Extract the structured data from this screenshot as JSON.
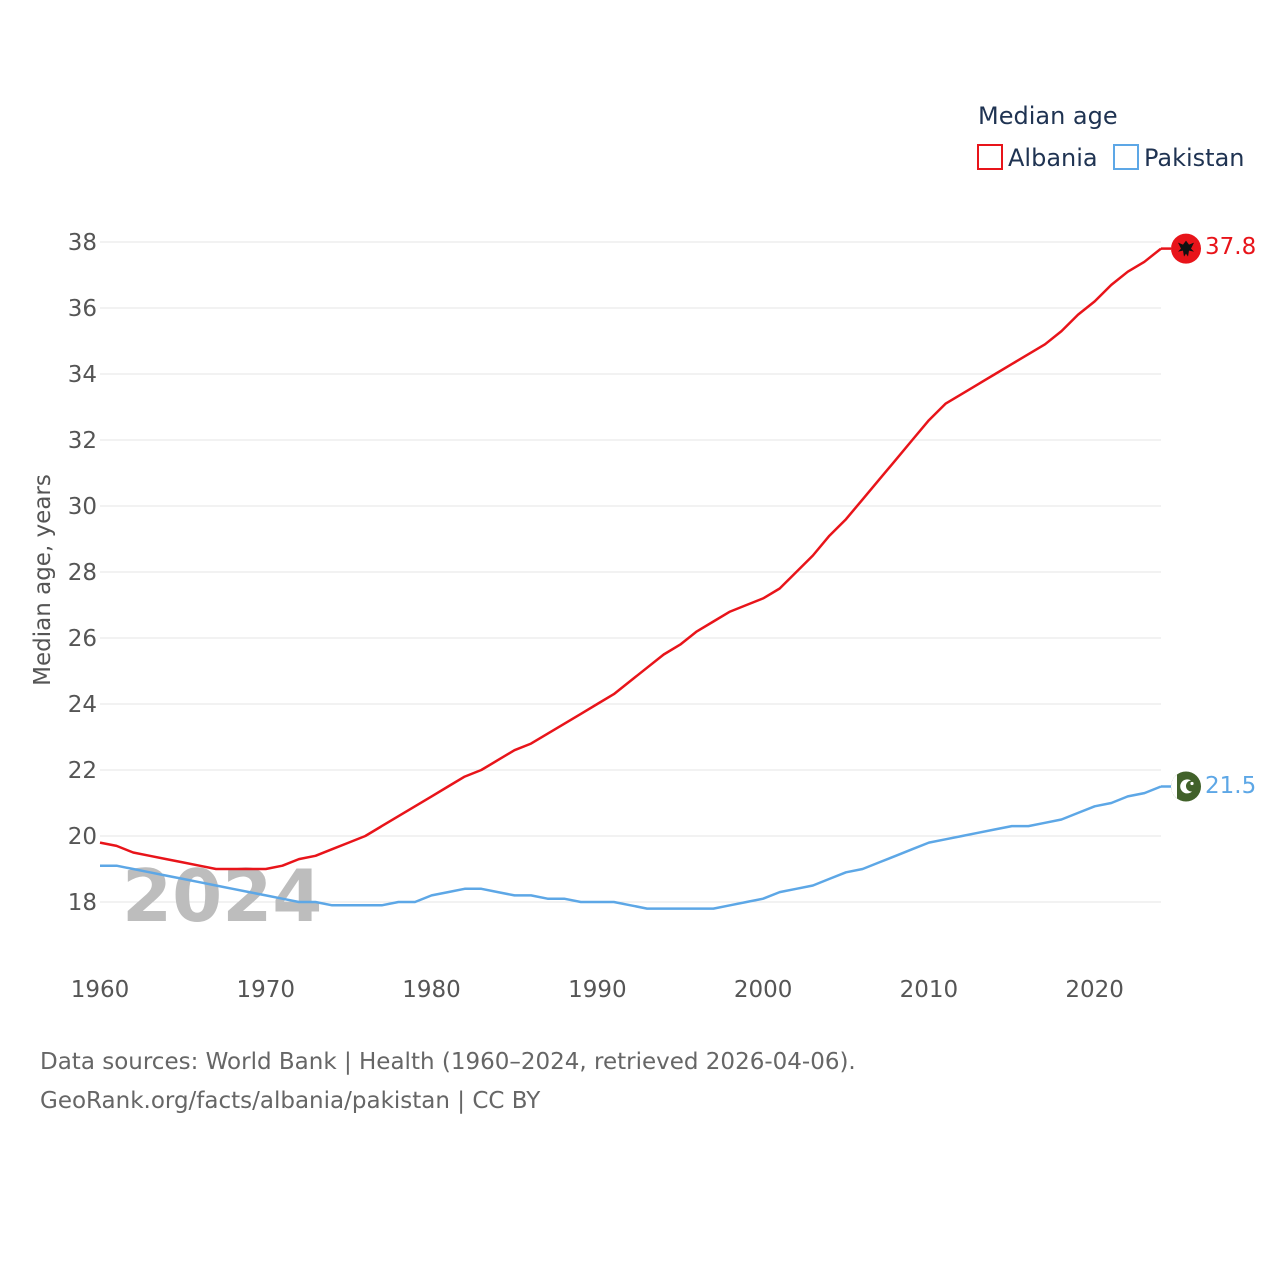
{
  "chart_data": {
    "type": "line",
    "title": "Median age",
    "ylabel": "Median age, years",
    "xlabel": "",
    "xlim": [
      1960,
      2024
    ],
    "ylim": [
      16.5,
      38.5
    ],
    "x_ticks": [
      1960,
      1970,
      1980,
      1990,
      2000,
      2010,
      2020
    ],
    "y_ticks": [
      18,
      20,
      22,
      24,
      26,
      28,
      30,
      32,
      34,
      36,
      38
    ],
    "current_year": "2024",
    "legend": [
      "Albania",
      "Pakistan"
    ],
    "x": [
      1960,
      1961,
      1962,
      1963,
      1964,
      1965,
      1966,
      1967,
      1968,
      1969,
      1970,
      1971,
      1972,
      1973,
      1974,
      1975,
      1976,
      1977,
      1978,
      1979,
      1980,
      1981,
      1982,
      1983,
      1984,
      1985,
      1986,
      1987,
      1988,
      1989,
      1990,
      1991,
      1992,
      1993,
      1994,
      1995,
      1996,
      1997,
      1998,
      1999,
      2000,
      2001,
      2002,
      2003,
      2004,
      2005,
      2006,
      2007,
      2008,
      2009,
      2010,
      2011,
      2012,
      2013,
      2014,
      2015,
      2016,
      2017,
      2018,
      2019,
      2020,
      2021,
      2022,
      2023,
      2024
    ],
    "series": [
      {
        "name": "Albania",
        "color": "#e8141a",
        "end_label": "37.8",
        "values": [
          19.8,
          19.7,
          19.5,
          19.4,
          19.3,
          19.2,
          19.1,
          19.0,
          19.0,
          19.0,
          19.0,
          19.1,
          19.3,
          19.4,
          19.6,
          19.8,
          20.0,
          20.3,
          20.6,
          20.9,
          21.2,
          21.5,
          21.8,
          22.0,
          22.3,
          22.6,
          22.8,
          23.1,
          23.4,
          23.7,
          24.0,
          24.3,
          24.7,
          25.1,
          25.5,
          25.8,
          26.2,
          26.5,
          26.8,
          27.0,
          27.2,
          27.5,
          28.0,
          28.5,
          29.1,
          29.6,
          30.2,
          30.8,
          31.4,
          32.0,
          32.6,
          33.1,
          33.4,
          33.7,
          34.0,
          34.3,
          34.6,
          34.9,
          35.3,
          35.8,
          36.2,
          36.7,
          37.1,
          37.4,
          37.8
        ]
      },
      {
        "name": "Pakistan",
        "color": "#5da7e6",
        "end_label": "21.5",
        "values": [
          19.1,
          19.1,
          19.0,
          18.9,
          18.8,
          18.7,
          18.6,
          18.5,
          18.4,
          18.3,
          18.2,
          18.1,
          18.0,
          18.0,
          17.9,
          17.9,
          17.9,
          17.9,
          18.0,
          18.0,
          18.2,
          18.3,
          18.4,
          18.4,
          18.3,
          18.2,
          18.2,
          18.1,
          18.1,
          18.0,
          18.0,
          18.0,
          17.9,
          17.8,
          17.8,
          17.8,
          17.8,
          17.8,
          17.9,
          18.0,
          18.1,
          18.3,
          18.4,
          18.5,
          18.7,
          18.9,
          19.0,
          19.2,
          19.4,
          19.6,
          19.8,
          19.9,
          20.0,
          20.1,
          20.2,
          20.3,
          20.3,
          20.4,
          20.5,
          20.7,
          20.9,
          21.0,
          21.2,
          21.3,
          21.5
        ]
      }
    ]
  },
  "footer": {
    "source_line": "Data sources: World Bank | Health (1960–2024, retrieved 2026-04-06).",
    "credit_line": "GeoRank.org/facts/albania/pakistan | CC BY"
  }
}
